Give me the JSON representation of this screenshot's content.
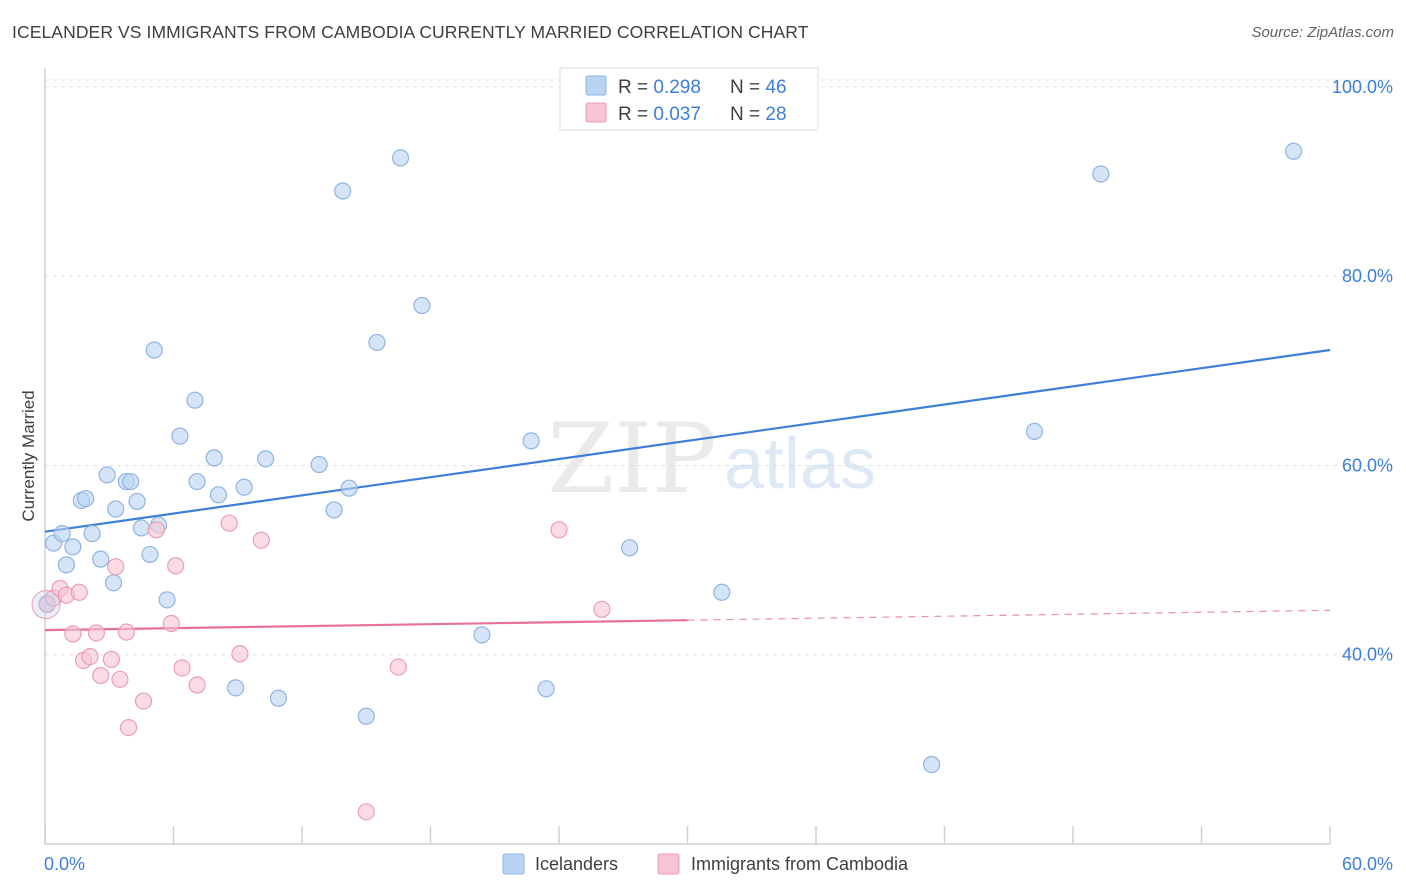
{
  "title": "ICELANDER VS IMMIGRANTS FROM CAMBODIA CURRENTLY MARRIED CORRELATION CHART",
  "source": "Source: ZipAtlas.com",
  "watermark": {
    "zip": "ZIP",
    "atlas": "atlas"
  },
  "legend_top": [
    {
      "r_label": "R = ",
      "r_value": "0.298",
      "n_label": "N = ",
      "n_value": "46"
    },
    {
      "r_label": "R = ",
      "r_value": "0.037",
      "n_label": "N = ",
      "n_value": "28"
    }
  ],
  "legend_bottom": [
    "Icelanders",
    "Immigrants from Cambodia"
  ],
  "colors": {
    "blue_fill": "#b9d3f2",
    "blue_stroke": "#8fb4e3",
    "blue_line": "#3d7fd8",
    "pink_fill": "#f8c4d4",
    "pink_stroke": "#ec9db5",
    "pink_line": "#e8709a",
    "value_text": "#3d7fd8",
    "grid": "#e2e2e2",
    "axis": "#d0d0d0"
  },
  "chart_data": {
    "type": "scatter",
    "title": "ICELANDER VS IMMIGRANTS FROM CAMBODIA CURRENTLY MARRIED CORRELATION CHART",
    "xlabel": "",
    "ylabel": "Currently Married",
    "xlim": [
      0,
      60
    ],
    "ylim": [
      20,
      102
    ],
    "x_tick_labels": [
      {
        "value": 0,
        "label": "0.0%"
      },
      {
        "value": 60,
        "label": "60.0%"
      }
    ],
    "y_tick_labels": [
      {
        "value": 40,
        "label": "40.0%"
      },
      {
        "value": 60,
        "label": "60.0%"
      },
      {
        "value": 80,
        "label": "80.0%"
      },
      {
        "value": 100,
        "label": "100.0%"
      }
    ],
    "series": [
      {
        "name": "Icelanders",
        "color": "blue",
        "r": 0.298,
        "n": 46,
        "trend": {
          "x0": 0,
          "y0": 53.0,
          "x1": 60,
          "y1": 72.2,
          "dashed_from": null
        },
        "points": [
          [
            0.4,
            51.8
          ],
          [
            0.8,
            52.8
          ],
          [
            1.0,
            49.5
          ],
          [
            1.3,
            51.4
          ],
          [
            1.7,
            56.3
          ],
          [
            1.9,
            56.5
          ],
          [
            2.2,
            52.8
          ],
          [
            2.6,
            50.1
          ],
          [
            2.9,
            59.0
          ],
          [
            3.2,
            47.6
          ],
          [
            3.3,
            55.4
          ],
          [
            3.8,
            58.3
          ],
          [
            4.0,
            58.3
          ],
          [
            4.3,
            56.2
          ],
          [
            4.5,
            53.4
          ],
          [
            4.9,
            50.6
          ],
          [
            5.1,
            72.2
          ],
          [
            5.3,
            53.7
          ],
          [
            5.7,
            45.8
          ],
          [
            6.3,
            63.1
          ],
          [
            7.0,
            66.9
          ],
          [
            7.1,
            58.3
          ],
          [
            7.9,
            60.8
          ],
          [
            8.1,
            56.9
          ],
          [
            8.9,
            36.5
          ],
          [
            9.3,
            57.7
          ],
          [
            10.3,
            60.7
          ],
          [
            10.9,
            35.4
          ],
          [
            12.8,
            60.1
          ],
          [
            13.5,
            55.3
          ],
          [
            13.9,
            89.0
          ],
          [
            14.2,
            57.6
          ],
          [
            15.0,
            33.5
          ],
          [
            15.5,
            73.0
          ],
          [
            16.6,
            92.5
          ],
          [
            17.6,
            76.9
          ],
          [
            20.4,
            42.1
          ],
          [
            22.7,
            62.6
          ],
          [
            23.4,
            36.4
          ],
          [
            27.3,
            51.3
          ],
          [
            31.6,
            46.6
          ],
          [
            41.4,
            28.4
          ],
          [
            46.2,
            63.6
          ],
          [
            49.3,
            90.8
          ],
          [
            58.3,
            93.2
          ],
          [
            0.1,
            45.4
          ]
        ]
      },
      {
        "name": "Immigrants from Cambodia",
        "color": "pink",
        "r": 0.037,
        "n": 28,
        "trend": {
          "x0": 0,
          "y0": 42.6,
          "x1": 60,
          "y1": 44.7,
          "dashed_from": 30
        },
        "points": [
          [
            0.1,
            45.3
          ],
          [
            0.4,
            46.0
          ],
          [
            0.7,
            47.0
          ],
          [
            1.0,
            46.3
          ],
          [
            1.3,
            42.2
          ],
          [
            1.6,
            46.6
          ],
          [
            1.8,
            39.4
          ],
          [
            2.1,
            39.8
          ],
          [
            2.4,
            42.3
          ],
          [
            2.6,
            37.8
          ],
          [
            3.1,
            39.5
          ],
          [
            3.3,
            49.3
          ],
          [
            3.5,
            37.4
          ],
          [
            3.8,
            42.4
          ],
          [
            3.9,
            32.3
          ],
          [
            4.6,
            35.1
          ],
          [
            5.2,
            53.2
          ],
          [
            5.9,
            43.3
          ],
          [
            6.1,
            49.4
          ],
          [
            6.4,
            38.6
          ],
          [
            7.1,
            36.8
          ],
          [
            8.6,
            53.9
          ],
          [
            9.1,
            40.1
          ],
          [
            10.1,
            52.1
          ],
          [
            15.0,
            23.4
          ],
          [
            16.5,
            38.7
          ],
          [
            24.0,
            53.2
          ],
          [
            26.0,
            44.8
          ]
        ]
      }
    ]
  }
}
